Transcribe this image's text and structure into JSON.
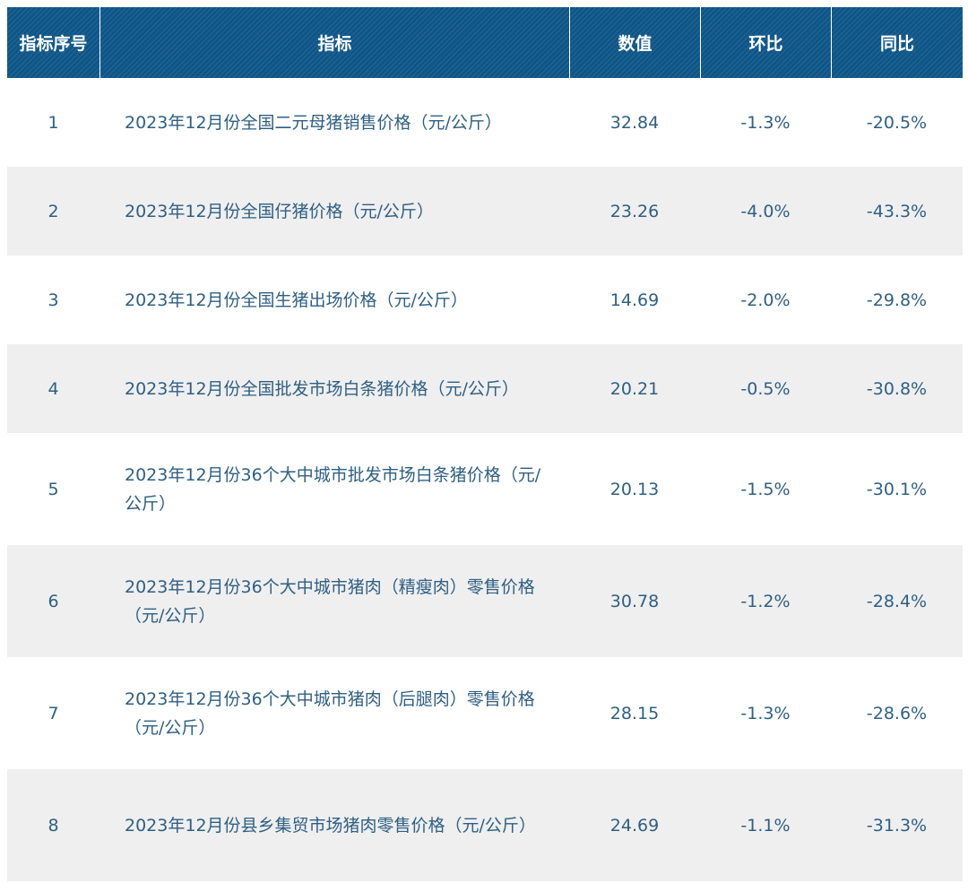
{
  "headers": [
    "指标序号",
    "指标",
    "数值",
    "环比",
    "同比"
  ],
  "rows": [
    {
      "index": "1",
      "name": "2023年12月份全国二元母猪销售价格（元/公斤）",
      "value": "32.84",
      "mom": "-1.3%",
      "yoy": "-20.5%"
    },
    {
      "index": "2",
      "name": "2023年12月份全国仔猪价格（元/公斤）",
      "value": "23.26",
      "mom": "-4.0%",
      "yoy": "-43.3%"
    },
    {
      "index": "3",
      "name": "2023年12月份全国生猪出场价格（元/公斤）",
      "value": "14.69",
      "mom": "-2.0%",
      "yoy": "-29.8%"
    },
    {
      "index": "4",
      "name": "2023年12月份全国批发市场白条猪价格（元/公斤）",
      "value": "20.21",
      "mom": "-0.5%",
      "yoy": "-30.8%"
    },
    {
      "index": "5",
      "name": "2023年12月份36个大中城市批发市场白条猪价格（元/公斤）",
      "value": "20.13",
      "mom": "-1.5%",
      "yoy": "-30.1%"
    },
    {
      "index": "6",
      "name": "2023年12月份36个大中城市猪肉（精瘦肉）零售价格（元/公斤）",
      "value": "30.78",
      "mom": "-1.2%",
      "yoy": "-28.4%"
    },
    {
      "index": "7",
      "name": "2023年12月份36个大中城市猪肉（后腿肉）零售价格（元/公斤）",
      "value": "28.15",
      "mom": "-1.3%",
      "yoy": "-28.6%"
    },
    {
      "index": "8",
      "name": "2023年12月份县乡集贸市场猪肉零售价格（元/公斤）",
      "value": "24.69",
      "mom": "-1.1%",
      "yoy": "-31.3%"
    }
  ]
}
